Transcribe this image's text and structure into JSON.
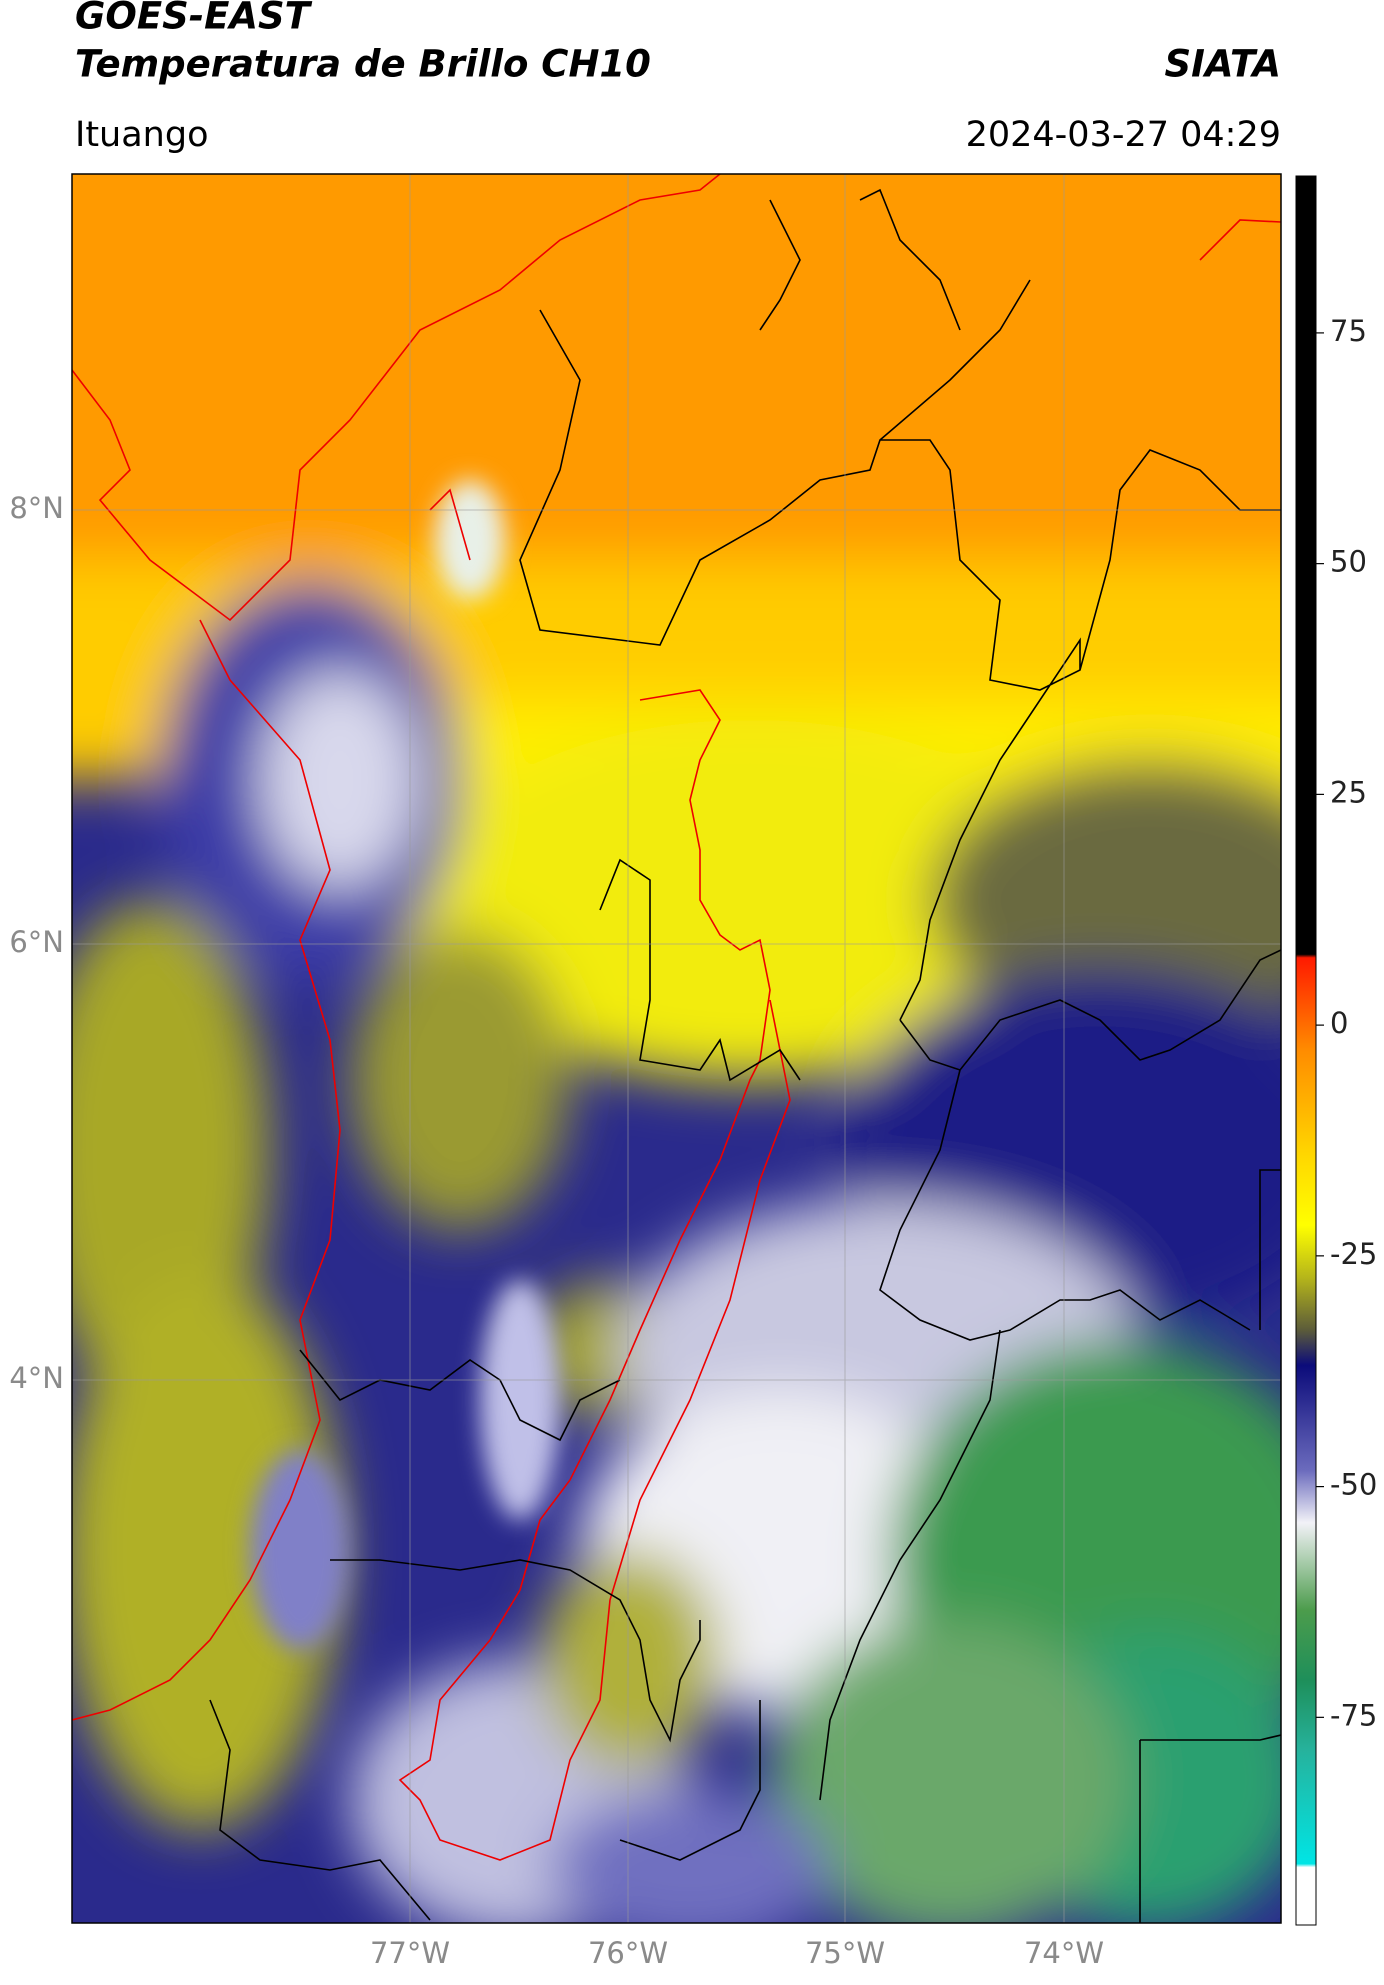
{
  "header": {
    "title": "GOES-EAST",
    "subtitle": "Temperatura de Brillo CH10",
    "source": "SIATA",
    "region": "Ituango",
    "timestamp": "2024-03-27 04:29"
  },
  "map": {
    "lat_labels": [
      "8°N",
      "6°N",
      "4°N"
    ],
    "lon_labels": [
      "77°W",
      "76°W",
      "75°W",
      "74°W"
    ]
  },
  "colorbar": {
    "lim": [
      -97.5,
      92
    ],
    "ticks": [
      75,
      50,
      25,
      0,
      -25,
      -50,
      -75
    ]
  }
}
